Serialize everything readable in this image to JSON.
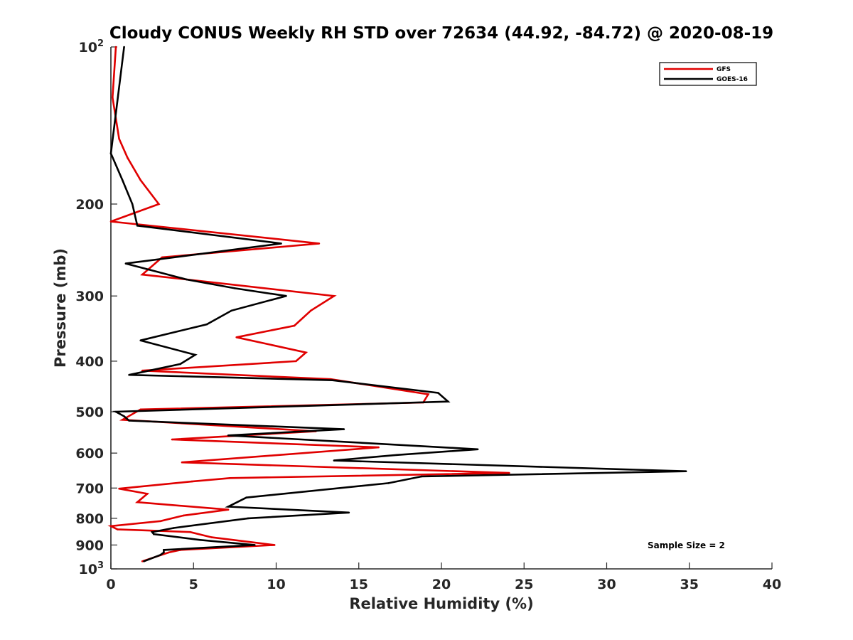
{
  "chart_data": {
    "type": "line",
    "title": "Cloudy CONUS Weekly RH STD over 72634 (44.92, -84.72) @ 2020-08-19",
    "xlabel": "Relative Humidity (%)",
    "ylabel": "Pressure (mb)",
    "xlim": [
      0,
      40
    ],
    "ylim": [
      100,
      1000
    ],
    "y_scale": "log",
    "y_reversed": true,
    "grid": false,
    "legend_position": "top-right",
    "x_ticks": [
      "0",
      "5",
      "10",
      "15",
      "20",
      "25",
      "30",
      "35",
      "40"
    ],
    "x_tick_values": [
      0,
      5,
      10,
      15,
      20,
      25,
      30,
      35,
      40
    ],
    "y_ticks": [
      {
        "value": 100,
        "base": "10",
        "exp": "2"
      },
      {
        "value": 200,
        "label": "200"
      },
      {
        "value": 300,
        "label": "300"
      },
      {
        "value": 400,
        "label": "400"
      },
      {
        "value": 500,
        "label": "500"
      },
      {
        "value": 600,
        "label": "600"
      },
      {
        "value": 700,
        "label": "700"
      },
      {
        "value": 800,
        "label": "800"
      },
      {
        "value": 900,
        "label": "900"
      },
      {
        "value": 1000,
        "base": "10",
        "exp": "3"
      }
    ],
    "annotation": "Sample Size = 2",
    "series": [
      {
        "name": "GFS",
        "color": "#e00000",
        "points": [
          {
            "x": 0.3,
            "y": 100
          },
          {
            "x": 0.1,
            "y": 125
          },
          {
            "x": 0.5,
            "y": 150
          },
          {
            "x": 1.0,
            "y": 163
          },
          {
            "x": 1.8,
            "y": 180
          },
          {
            "x": 2.9,
            "y": 200
          },
          {
            "x": 0.0,
            "y": 216
          },
          {
            "x": 12.6,
            "y": 238
          },
          {
            "x": 3.1,
            "y": 253
          },
          {
            "x": 1.9,
            "y": 273
          },
          {
            "x": 13.5,
            "y": 300
          },
          {
            "x": 12.1,
            "y": 320
          },
          {
            "x": 11.1,
            "y": 342
          },
          {
            "x": 7.6,
            "y": 360
          },
          {
            "x": 11.8,
            "y": 385
          },
          {
            "x": 11.2,
            "y": 400
          },
          {
            "x": 1.9,
            "y": 417
          },
          {
            "x": 13.3,
            "y": 433
          },
          {
            "x": 19.2,
            "y": 463
          },
          {
            "x": 18.9,
            "y": 480
          },
          {
            "x": 1.8,
            "y": 495
          },
          {
            "x": 0.7,
            "y": 518
          },
          {
            "x": 12.4,
            "y": 545
          },
          {
            "x": 3.7,
            "y": 565
          },
          {
            "x": 16.2,
            "y": 585
          },
          {
            "x": 4.3,
            "y": 625
          },
          {
            "x": 24.1,
            "y": 655
          },
          {
            "x": 7.2,
            "y": 670
          },
          {
            "x": 4.9,
            "y": 680
          },
          {
            "x": 0.5,
            "y": 702
          },
          {
            "x": 2.2,
            "y": 718
          },
          {
            "x": 1.6,
            "y": 745
          },
          {
            "x": 7.1,
            "y": 770
          },
          {
            "x": 4.4,
            "y": 790
          },
          {
            "x": 3.0,
            "y": 810
          },
          {
            "x": 0.0,
            "y": 828
          },
          {
            "x": 0.4,
            "y": 840
          },
          {
            "x": 4.8,
            "y": 850
          },
          {
            "x": 6.1,
            "y": 870
          },
          {
            "x": 9.9,
            "y": 900
          },
          {
            "x": 4.2,
            "y": 920
          },
          {
            "x": 3.5,
            "y": 930
          },
          {
            "x": 1.9,
            "y": 967
          }
        ]
      },
      {
        "name": "GOES-16",
        "color": "#000000",
        "points": [
          {
            "x": 0.8,
            "y": 100
          },
          {
            "x": 0.0,
            "y": 160
          },
          {
            "x": 0.7,
            "y": 180
          },
          {
            "x": 1.3,
            "y": 200
          },
          {
            "x": 1.6,
            "y": 220
          },
          {
            "x": 10.3,
            "y": 238
          },
          {
            "x": 0.9,
            "y": 260
          },
          {
            "x": 4.6,
            "y": 279
          },
          {
            "x": 7.5,
            "y": 290
          },
          {
            "x": 10.6,
            "y": 300
          },
          {
            "x": 7.3,
            "y": 320
          },
          {
            "x": 5.8,
            "y": 340
          },
          {
            "x": 1.8,
            "y": 365
          },
          {
            "x": 5.1,
            "y": 389
          },
          {
            "x": 4.2,
            "y": 405
          },
          {
            "x": 1.1,
            "y": 425
          },
          {
            "x": 13.4,
            "y": 435
          },
          {
            "x": 19.8,
            "y": 460
          },
          {
            "x": 20.4,
            "y": 478
          },
          {
            "x": 0.3,
            "y": 500
          },
          {
            "x": 0.8,
            "y": 510
          },
          {
            "x": 1.1,
            "y": 520
          },
          {
            "x": 14.1,
            "y": 540
          },
          {
            "x": 7.1,
            "y": 555
          },
          {
            "x": 22.2,
            "y": 590
          },
          {
            "x": 17.3,
            "y": 605
          },
          {
            "x": 13.5,
            "y": 620
          },
          {
            "x": 34.8,
            "y": 650
          },
          {
            "x": 18.8,
            "y": 665
          },
          {
            "x": 16.8,
            "y": 685
          },
          {
            "x": 8.2,
            "y": 730
          },
          {
            "x": 7.1,
            "y": 760
          },
          {
            "x": 14.4,
            "y": 780
          },
          {
            "x": 8.3,
            "y": 800
          },
          {
            "x": 3.8,
            "y": 835
          },
          {
            "x": 2.5,
            "y": 850
          },
          {
            "x": 2.6,
            "y": 858
          },
          {
            "x": 5.4,
            "y": 880
          },
          {
            "x": 8.7,
            "y": 900
          },
          {
            "x": 3.2,
            "y": 920
          },
          {
            "x": 3.2,
            "y": 930
          },
          {
            "x": 3.0,
            "y": 940
          },
          {
            "x": 2.0,
            "y": 967
          }
        ]
      }
    ]
  }
}
